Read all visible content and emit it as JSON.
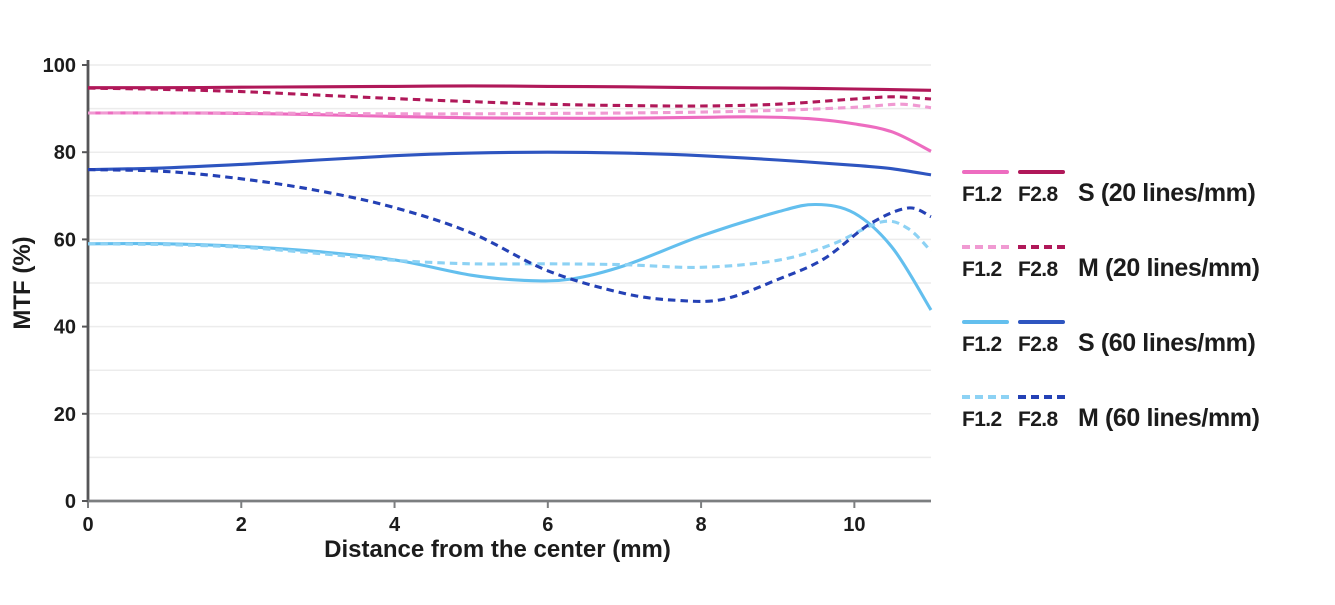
{
  "chart_data": {
    "type": "line",
    "title": "",
    "xlabel": "Distance from the center (mm)",
    "ylabel": "MTF (%)",
    "x_axis": {
      "title": "Distance from the center (mm)",
      "ticks": [
        0,
        2,
        4,
        6,
        8,
        10
      ],
      "min": 0,
      "max": 11
    },
    "y_axis": {
      "title": "MTF (%)",
      "ticks": [
        0,
        20,
        40,
        60,
        80,
        100
      ],
      "min": 0,
      "max": 100,
      "grid_step": 10
    },
    "grid": "horizontal light-gray lines every 10%",
    "legend_position": "right",
    "colors": {
      "pink_solid": "#ed6cc0",
      "pink_dashed": "#f09ad2",
      "crimson": "#b01859",
      "lightblue_solid": "#63bfee",
      "lightblue_dashed": "#8dd2f4",
      "darkblue_solid": "#2e55c0",
      "darkblue_dashed": "#2441b5",
      "grid_line": "#ececec",
      "y_axis_line": "#565658",
      "x_axis_line": "#7c7e80",
      "text": "#1c1c1c"
    },
    "series": [
      {
        "key": "s20_f12",
        "name": "F1.2 S (20 lines/mm)",
        "aperture": "F1.2",
        "target": "S",
        "frequency": "20 lines/mm",
        "style": "solid",
        "color": "#ed6cc0",
        "points": [
          [
            0,
            89.0
          ],
          [
            1,
            89.0
          ],
          [
            2,
            88.9
          ],
          [
            3,
            88.6
          ],
          [
            4,
            88.2
          ],
          [
            5,
            87.9
          ],
          [
            6,
            87.8
          ],
          [
            7,
            87.8
          ],
          [
            8,
            88.0
          ],
          [
            8.7,
            88.1
          ],
          [
            9.4,
            87.7
          ],
          [
            10,
            86.5
          ],
          [
            10.5,
            84.6
          ],
          [
            11,
            80.2
          ]
        ]
      },
      {
        "key": "s20_f28",
        "name": "F2.8 S (20 lines/mm)",
        "aperture": "F2.8",
        "target": "S",
        "frequency": "20 lines/mm",
        "style": "solid",
        "color": "#b01859",
        "points": [
          [
            0,
            94.8
          ],
          [
            1,
            94.8
          ],
          [
            2,
            94.9
          ],
          [
            3,
            95.0
          ],
          [
            4,
            95.1
          ],
          [
            5,
            95.2
          ],
          [
            6,
            95.1
          ],
          [
            7,
            95.0
          ],
          [
            8,
            94.8
          ],
          [
            9,
            94.7
          ],
          [
            10,
            94.5
          ],
          [
            11,
            94.2
          ]
        ]
      },
      {
        "key": "m20_f12",
        "name": "F1.2 M (20 lines/mm)",
        "aperture": "F1.2",
        "target": "M",
        "frequency": "20 lines/mm",
        "style": "dashed",
        "color": "#f09ad2",
        "points": [
          [
            0,
            89.0
          ],
          [
            1,
            89.0
          ],
          [
            2,
            89.0
          ],
          [
            3,
            88.9
          ],
          [
            4,
            88.8
          ],
          [
            5,
            88.8
          ],
          [
            6,
            88.9
          ],
          [
            7,
            89.0
          ],
          [
            8,
            89.2
          ],
          [
            9,
            89.6
          ],
          [
            10,
            90.3
          ],
          [
            10.6,
            91.0
          ],
          [
            11,
            90.2
          ]
        ]
      },
      {
        "key": "m20_f28",
        "name": "F2.8 M (20 lines/mm)",
        "aperture": "F2.8",
        "target": "M",
        "frequency": "20 lines/mm",
        "style": "dashed",
        "color": "#b01859",
        "points": [
          [
            0,
            94.7
          ],
          [
            1,
            94.4
          ],
          [
            2,
            93.9
          ],
          [
            3,
            93.1
          ],
          [
            4,
            92.3
          ],
          [
            5,
            91.6
          ],
          [
            6,
            91.0
          ],
          [
            7,
            90.7
          ],
          [
            8,
            90.6
          ],
          [
            9,
            91.0
          ],
          [
            10,
            92.2
          ],
          [
            10.5,
            92.7
          ],
          [
            11,
            92.2
          ]
        ]
      },
      {
        "key": "s60_f12",
        "name": "F1.2 S (60 lines/mm)",
        "aperture": "F1.2",
        "target": "S",
        "frequency": "60 lines/mm",
        "style": "solid",
        "color": "#63bfee",
        "points": [
          [
            0,
            59.0
          ],
          [
            1,
            59.0
          ],
          [
            2,
            58.4
          ],
          [
            3,
            57.2
          ],
          [
            4,
            55.3
          ],
          [
            5,
            51.8
          ],
          [
            5.7,
            50.6
          ],
          [
            6.3,
            50.9
          ],
          [
            7,
            54.0
          ],
          [
            8,
            60.8
          ],
          [
            9,
            66.3
          ],
          [
            9.5,
            68.0
          ],
          [
            10,
            66.0
          ],
          [
            10.5,
            58.0
          ],
          [
            11,
            43.8
          ]
        ]
      },
      {
        "key": "m60_f12",
        "name": "F1.2 M (60 lines/mm)",
        "aperture": "F1.2",
        "target": "M",
        "frequency": "60 lines/mm",
        "style": "dashed",
        "color": "#8dd2f4",
        "points": [
          [
            0,
            59.0
          ],
          [
            1,
            58.8
          ],
          [
            2,
            58.2
          ],
          [
            3,
            56.8
          ],
          [
            4,
            55.2
          ],
          [
            5,
            54.4
          ],
          [
            6,
            54.4
          ],
          [
            7,
            54.2
          ],
          [
            8,
            53.6
          ],
          [
            9,
            55.2
          ],
          [
            9.7,
            58.8
          ],
          [
            10.35,
            64.0
          ],
          [
            10.7,
            62.5
          ],
          [
            11,
            57.3
          ]
        ]
      },
      {
        "key": "s60_f28",
        "name": "F2.8 S (60 lines/mm)",
        "aperture": "F2.8",
        "target": "S",
        "frequency": "60 lines/mm",
        "style": "solid",
        "color": "#2e55c0",
        "points": [
          [
            0,
            76.0
          ],
          [
            1,
            76.4
          ],
          [
            2,
            77.2
          ],
          [
            3,
            78.2
          ],
          [
            4,
            79.2
          ],
          [
            5,
            79.8
          ],
          [
            6,
            80.0
          ],
          [
            7,
            79.8
          ],
          [
            8,
            79.2
          ],
          [
            9,
            78.2
          ],
          [
            10,
            77.0
          ],
          [
            10.5,
            76.2
          ],
          [
            11,
            74.8
          ]
        ]
      },
      {
        "key": "m60_f28",
        "name": "F2.8 M (60 lines/mm)",
        "aperture": "F2.8",
        "target": "M",
        "frequency": "60 lines/mm",
        "style": "dashed",
        "color": "#2441b5",
        "points": [
          [
            0,
            76.0
          ],
          [
            1,
            75.6
          ],
          [
            2,
            73.9
          ],
          [
            3,
            71.2
          ],
          [
            4,
            67.3
          ],
          [
            5,
            61.5
          ],
          [
            6,
            52.8
          ],
          [
            7,
            47.6
          ],
          [
            7.7,
            46.0
          ],
          [
            8.3,
            46.3
          ],
          [
            9,
            50.8
          ],
          [
            9.6,
            55.5
          ],
          [
            10.2,
            63.5
          ],
          [
            10.7,
            67.2
          ],
          [
            11,
            65.2
          ]
        ]
      }
    ],
    "legend": [
      {
        "f12_label": "F1.2",
        "f28_label": "F2.8",
        "desc": "S (20 lines/mm)",
        "f12_color": "#ed6cc0",
        "f28_color": "#b01859",
        "dashed": false
      },
      {
        "f12_label": "F1.2",
        "f28_label": "F2.8",
        "desc": "M (20 lines/mm)",
        "f12_color": "#f09ad2",
        "f28_color": "#b01859",
        "dashed": true
      },
      {
        "f12_label": "F1.2",
        "f28_label": "F2.8",
        "desc": "S (60 lines/mm)",
        "f12_color": "#63bfee",
        "f28_color": "#2e55c0",
        "dashed": false
      },
      {
        "f12_label": "F1.2",
        "f28_label": "F2.8",
        "desc": "M (60 lines/mm)",
        "f12_color": "#8dd2f4",
        "f28_color": "#2441b5",
        "dashed": true
      }
    ]
  }
}
